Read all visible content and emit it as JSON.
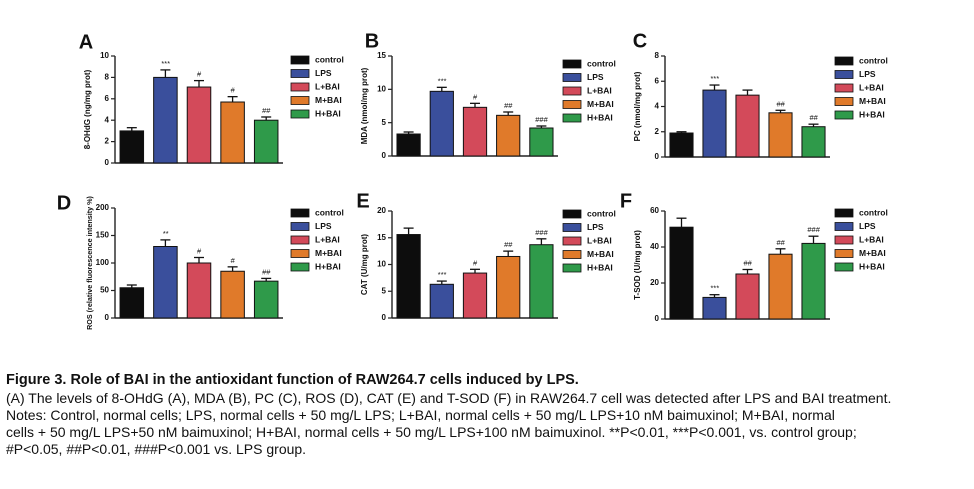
{
  "legend_labels": [
    "control",
    "LPS",
    "L+BAI",
    "M+BAI",
    "H+BAI"
  ],
  "colors": [
    "#0d0d0d",
    "#3a4f9c",
    "#d34a5a",
    "#e07a2a",
    "#2f9a4a"
  ],
  "caption": {
    "title": "Figure 3. Role of BAI in the antioxidant function of RAW264.7 cells induced by LPS.",
    "line1": "(A) The levels of 8-OHdG (A), MDA (B), PC (C), ROS (D), CAT (E) and T-SOD (F) in RAW264.7 cell was detected after LPS and BAI treatment.",
    "line2": "Notes: Control, normal cells; LPS, normal cells + 50 mg/L LPS; L+BAI, normal cells + 50 mg/L LPS+10 nM baimuxinol; M+BAI, normal",
    "line3": "cells + 50 mg/L LPS+50 nM baimuxinol; H+BAI, normal cells + 50 mg/L LPS+100 nM baimuxinol. **P<0.01, ***P<0.001, vs. control group;",
    "line4": "#P<0.05, ##P<0.01, ###P<0.001 vs. LPS group."
  },
  "chart_data": [
    {
      "panel": "A",
      "type": "bar",
      "ylabel": "8-OHdG (ng/mg prot)",
      "categories": [
        "control",
        "LPS",
        "L+BAI",
        "M+BAI",
        "H+BAI"
      ],
      "values": [
        3.0,
        8.0,
        7.1,
        5.7,
        4.0
      ],
      "errors": [
        0.3,
        0.7,
        0.6,
        0.5,
        0.3
      ],
      "sig": [
        "",
        "***",
        "#",
        "#",
        "##"
      ],
      "ylim": [
        0,
        10
      ],
      "ticks": [
        0,
        2,
        4,
        6,
        8,
        10
      ]
    },
    {
      "panel": "B",
      "type": "bar",
      "ylabel": "MDA (nmol/mg prot)",
      "categories": [
        "control",
        "LPS",
        "L+BAI",
        "M+BAI",
        "H+BAI"
      ],
      "values": [
        3.3,
        9.7,
        7.3,
        6.1,
        4.2
      ],
      "errors": [
        0.3,
        0.6,
        0.6,
        0.5,
        0.3
      ],
      "sig": [
        "",
        "***",
        "#",
        "##",
        "###"
      ],
      "ylim": [
        0,
        15
      ],
      "ticks": [
        0,
        5,
        10,
        15
      ]
    },
    {
      "panel": "C",
      "type": "bar",
      "ylabel": "PC (nmol/mg prot)",
      "categories": [
        "control",
        "LPS",
        "L+BAI",
        "M+BAI",
        "H+BAI"
      ],
      "values": [
        1.9,
        5.3,
        4.9,
        3.5,
        2.4
      ],
      "errors": [
        0.1,
        0.4,
        0.4,
        0.2,
        0.2
      ],
      "sig": [
        "",
        "***",
        "",
        "##",
        "##"
      ],
      "ylim": [
        0,
        8
      ],
      "ticks": [
        0,
        2,
        4,
        6,
        8
      ]
    },
    {
      "panel": "D",
      "type": "bar",
      "ylabel": "ROS (relative fluorescence intensity %)",
      "categories": [
        "control",
        "LPS",
        "L+BAI",
        "M+BAI",
        "H+BAI"
      ],
      "values": [
        55,
        130,
        100,
        85,
        67
      ],
      "errors": [
        5,
        12,
        10,
        8,
        5
      ],
      "sig": [
        "",
        "**",
        "#",
        "#",
        "##"
      ],
      "ylim": [
        0,
        200
      ],
      "ticks": [
        0,
        50,
        100,
        150,
        200
      ]
    },
    {
      "panel": "E",
      "type": "bar",
      "ylabel": "CAT (U/mg prot)",
      "categories": [
        "control",
        "LPS",
        "L+BAI",
        "M+BAI",
        "H+BAI"
      ],
      "values": [
        15.6,
        6.3,
        8.4,
        11.5,
        13.7
      ],
      "errors": [
        1.2,
        0.6,
        0.7,
        1.0,
        1.1
      ],
      "sig": [
        "",
        "***",
        "#",
        "##",
        "###"
      ],
      "ylim": [
        0,
        20
      ],
      "ticks": [
        0,
        5,
        10,
        15,
        20
      ]
    },
    {
      "panel": "F",
      "type": "bar",
      "ylabel": "T-SOD (U/mg prot)",
      "categories": [
        "control",
        "LPS",
        "L+BAI",
        "M+BAI",
        "H+BAI"
      ],
      "values": [
        51,
        12,
        25,
        36,
        42
      ],
      "errors": [
        5,
        1.5,
        2.5,
        3,
        4
      ],
      "sig": [
        "",
        "***",
        "##",
        "##",
        "###"
      ],
      "ylim": [
        0,
        60
      ],
      "ticks": [
        0,
        20,
        40,
        60
      ]
    }
  ]
}
